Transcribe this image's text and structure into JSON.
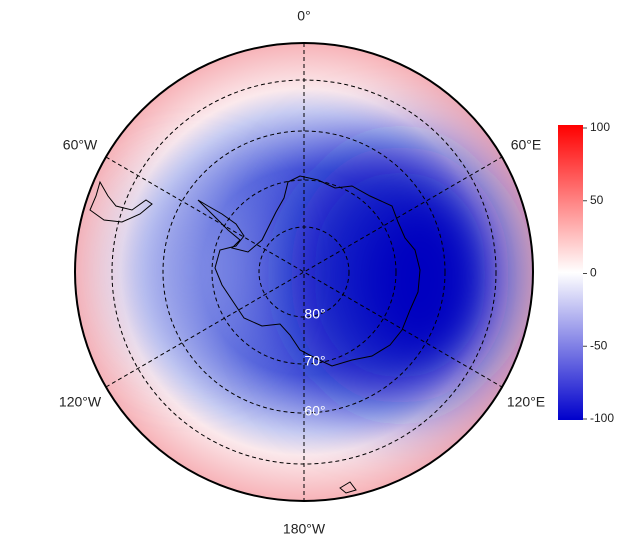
{
  "map": {
    "longitude_labels": [
      "0°",
      "60°E",
      "120°E",
      "180°W",
      "120°W",
      "60°W"
    ],
    "latitude_labels": [
      "80°",
      "70°",
      "60°"
    ],
    "colorbar": {
      "ylim": [
        -100,
        100
      ],
      "yticks": [
        100,
        50,
        0,
        -50,
        -100
      ],
      "colors": [
        "#0000cc",
        "#ffffff",
        "#ff0000"
      ]
    }
  }
}
